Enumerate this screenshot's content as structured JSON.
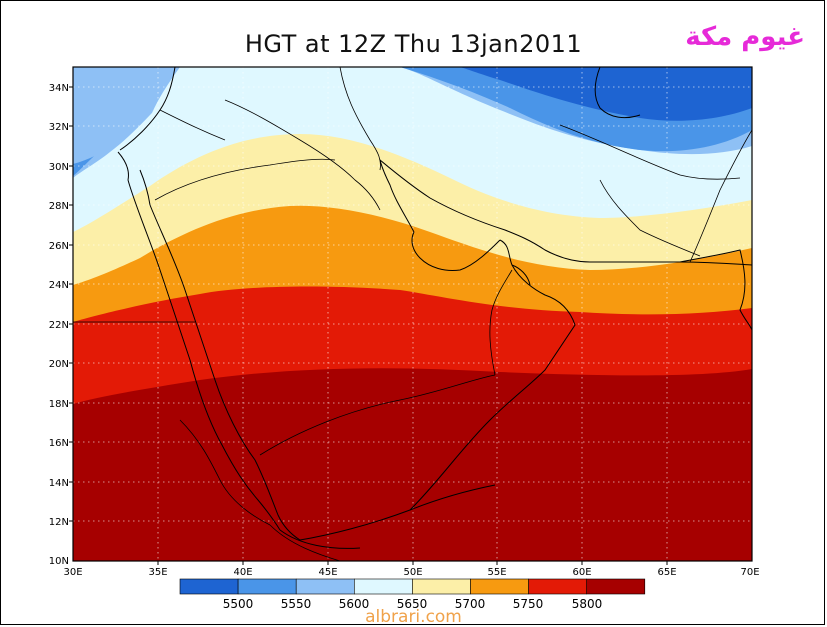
{
  "title": "HGT at 12Z Thu 13jan2011",
  "arabic_title": "غيوم مكة",
  "watermark": "albrari.com",
  "map": {
    "lon_range": [
      30,
      70
    ],
    "lat_range": [
      10,
      35
    ],
    "lon_ticks": [
      "30E",
      "35E",
      "40E",
      "45E",
      "50E",
      "55E",
      "60E",
      "65E",
      "70E"
    ],
    "lat_ticks": [
      "10N",
      "12N",
      "14N",
      "16N",
      "18N",
      "20N",
      "22N",
      "24N",
      "26N",
      "28N",
      "30N",
      "32N",
      "34N"
    ]
  },
  "legend": {
    "labels": [
      "5500",
      "5550",
      "5600",
      "5650",
      "5700",
      "5750",
      "5800"
    ],
    "colors": [
      "#1e64d2",
      "#4a95e8",
      "#8ec0f5",
      "#dff8ff",
      "#fcefa8",
      "#f79a10",
      "#e31a06",
      "#a60000"
    ]
  },
  "contour_colors": {
    "c5500": "#1e64d2",
    "c5550": "#4a95e8",
    "c5600": "#8ec0f5",
    "c5650": "#dff8ff",
    "c5700": "#fcefa8",
    "c5750": "#f79a10",
    "c5800": "#e31a06",
    "c5850": "#a60000"
  }
}
